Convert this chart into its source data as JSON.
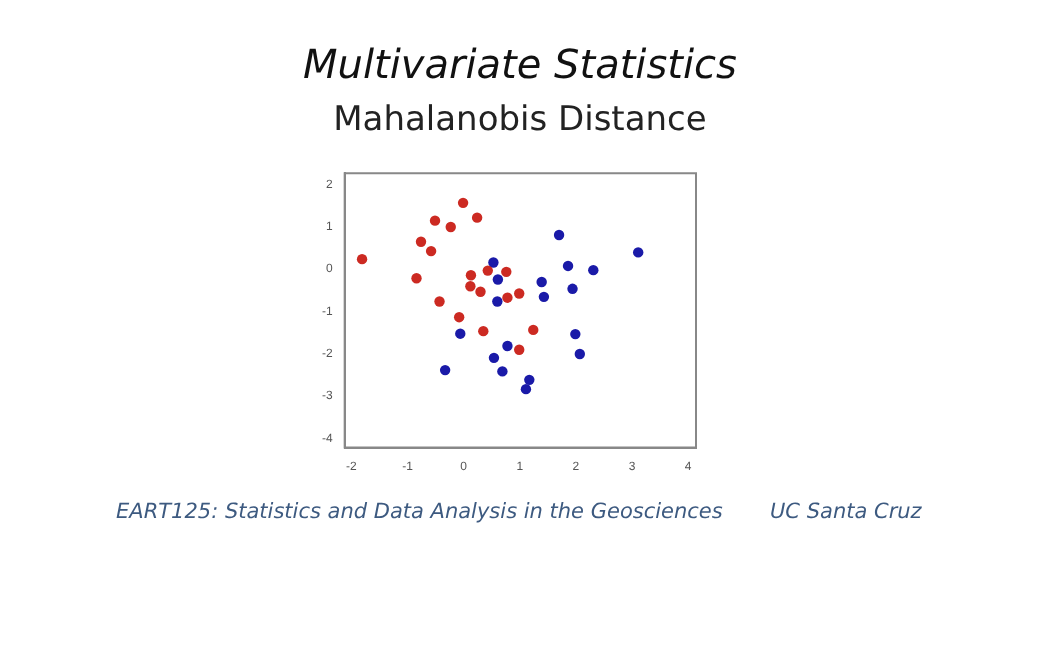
{
  "chart_data": {
    "type": "scatter",
    "title": "Multivariate Statistics",
    "subtitle": "Mahalanobis Distance",
    "annotations": [
      "EART125: Statistics and Data Analysis in the Geosciences",
      "UC Santa Cruz"
    ],
    "xlim": [
      -2.12,
      4.14
    ],
    "ylim": [
      -4.22,
      2.26
    ],
    "xticks": [
      -2,
      -1,
      0,
      1,
      2,
      3,
      4
    ],
    "yticks": [
      -4,
      -3,
      -2,
      -1,
      0,
      1,
      2
    ],
    "grid": false,
    "marker": "circle",
    "series": [
      {
        "color": "#cc2a22",
        "x": [
          -1.81,
          -0.01,
          0.24,
          -0.51,
          -0.23,
          -0.76,
          -0.58,
          -0.84,
          0.13,
          0.43,
          0.76,
          0.12,
          0.3,
          -0.43,
          0.99,
          0.78,
          -0.08,
          0.35,
          1.24,
          0.99
        ],
        "values": [
          0.23,
          1.56,
          1.21,
          1.14,
          0.99,
          0.64,
          0.42,
          -0.22,
          -0.15,
          -0.04,
          -0.07,
          -0.41,
          -0.54,
          -0.77,
          -0.58,
          -0.68,
          -1.14,
          -1.47,
          -1.44,
          -1.91
        ]
      },
      {
        "color": "#1a1aa8",
        "x": [
          0.53,
          0.61,
          0.6,
          1.7,
          3.11,
          1.86,
          2.31,
          1.39,
          1.43,
          1.94,
          -0.06,
          1.99,
          2.07,
          0.78,
          0.54,
          -0.33,
          0.69,
          1.17,
          1.11
        ],
        "values": [
          0.15,
          -0.25,
          -0.77,
          0.8,
          0.39,
          0.07,
          -0.03,
          -0.31,
          -0.66,
          -0.47,
          -1.53,
          -1.54,
          -2.01,
          -1.82,
          -2.1,
          -2.39,
          -2.42,
          -2.62,
          -2.84
        ]
      }
    ]
  }
}
